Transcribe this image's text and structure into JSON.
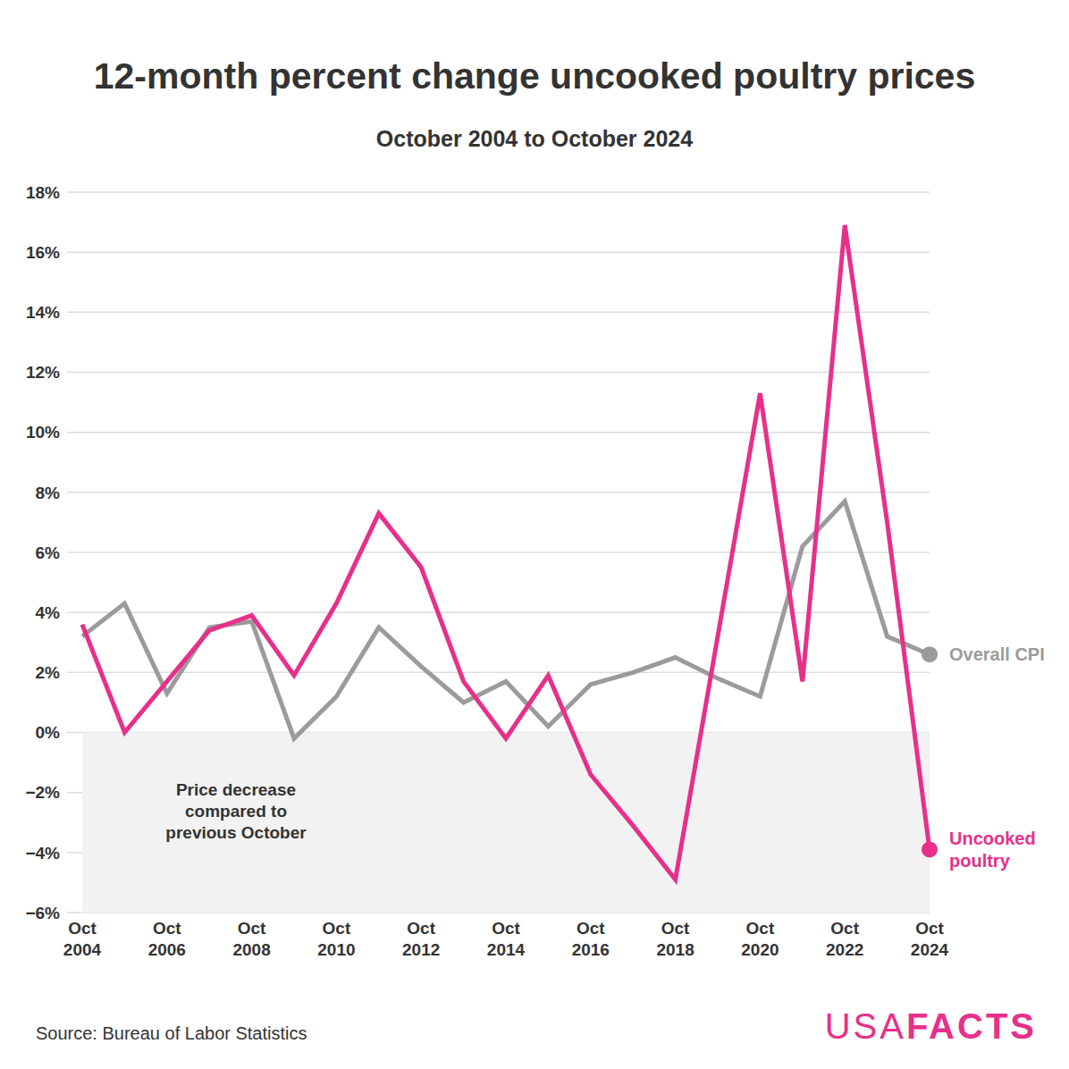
{
  "chart_data": {
    "type": "line",
    "title": "12-month percent change uncooked poultry prices",
    "subtitle": "October 2004 to October 2024",
    "categories": [
      "Oct 2004",
      null,
      "Oct 2006",
      null,
      "Oct 2008",
      null,
      "Oct 2010",
      null,
      "Oct 2012",
      null,
      "Oct 2014",
      null,
      "Oct 2016",
      null,
      "Oct 2018",
      null,
      "Oct 2020",
      null,
      "Oct 2022",
      null,
      "Oct 2024"
    ],
    "series": [
      {
        "name": "Overall CPI",
        "color": "#9b9b9b",
        "values": [
          3.2,
          4.3,
          1.3,
          3.5,
          3.7,
          -0.2,
          1.2,
          3.5,
          2.2,
          1.0,
          1.7,
          0.2,
          1.6,
          2.0,
          2.5,
          1.8,
          1.2,
          6.2,
          7.7,
          3.2,
          2.6
        ]
      },
      {
        "name": "Uncooked poultry",
        "color": "#e6308a",
        "values": [
          3.6,
          0.0,
          1.7,
          3.4,
          3.9,
          1.9,
          4.3,
          7.3,
          5.5,
          1.7,
          -0.2,
          1.9,
          -1.4,
          -3.1,
          -4.9,
          3.2,
          11.3,
          1.7,
          16.9,
          7.0,
          -3.9
        ]
      }
    ],
    "ylim": [
      -6,
      18
    ],
    "yticks": [
      {
        "value": -6,
        "label": "−6%"
      },
      {
        "value": -4,
        "label": "−4%"
      },
      {
        "value": -2,
        "label": "−2%"
      },
      {
        "value": 0,
        "label": "0%"
      },
      {
        "value": 2,
        "label": "2%"
      },
      {
        "value": 4,
        "label": "4%"
      },
      {
        "value": 6,
        "label": "6%"
      },
      {
        "value": 8,
        "label": "8%"
      },
      {
        "value": 10,
        "label": "10%"
      },
      {
        "value": 12,
        "label": "12%"
      },
      {
        "value": 14,
        "label": "14%"
      },
      {
        "value": 16,
        "label": "16%"
      },
      {
        "value": 18,
        "label": "18%"
      }
    ],
    "grid": true,
    "shaded_region": {
      "from": -6,
      "to": 0,
      "label": "Price decrease\ncompared to\nprevious October"
    },
    "source": "Source: Bureau of Labor Statistics",
    "logo_light": "USA",
    "logo_bold": "FACTS"
  }
}
